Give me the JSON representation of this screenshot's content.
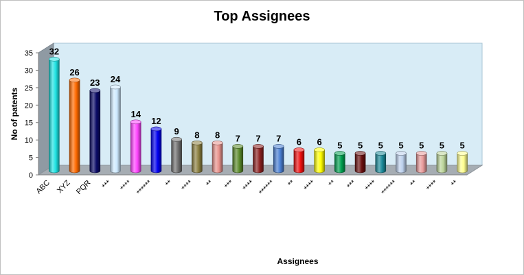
{
  "chart_data": {
    "type": "bar",
    "title": "Top Assignees",
    "xlabel": "Assignees",
    "ylabel": "No of patents",
    "ylim": [
      0,
      35
    ],
    "yticks": [
      0,
      5,
      10,
      15,
      20,
      25,
      30,
      35
    ],
    "grid": false,
    "legend": "none",
    "categories": [
      "ABC",
      "XYZ",
      "PQR",
      "***",
      "****",
      "******",
      "**",
      "****",
      "**",
      "***",
      "****",
      "******",
      "**",
      "****",
      "**",
      "***",
      "****",
      "******",
      "**",
      "****",
      "**"
    ],
    "values": [
      32,
      26,
      23,
      24,
      14,
      12,
      9,
      8,
      8,
      7,
      7,
      7,
      6,
      6,
      5,
      5,
      5,
      5,
      5,
      5,
      5
    ],
    "colors": [
      "#1ee3e3",
      "#ff6a00",
      "#0a0a66",
      "#cde9ff",
      "#ff44ff",
      "#0000ee",
      "#707070",
      "#8c8040",
      "#e8928c",
      "#5a8a2a",
      "#8c2020",
      "#4a7fd4",
      "#ee1010",
      "#ffff00",
      "#00a050",
      "#6a1010",
      "#1a8a9a",
      "#bcd0ec",
      "#e89a9a",
      "#bcd49a",
      "#ffff90"
    ],
    "colors_meaning": "per-bar fill colors"
  }
}
